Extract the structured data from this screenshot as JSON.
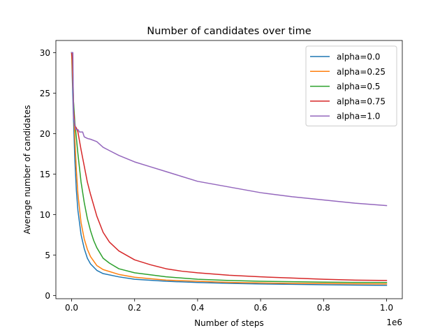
{
  "chart_data": {
    "type": "line",
    "title": "Number of candidates over time",
    "xlabel": "Number of steps",
    "ylabel": "Average number of candidates",
    "x_offset_label": "1e6",
    "xlim": [
      -0.05,
      1.05
    ],
    "ylim": [
      -0.4,
      31.5
    ],
    "x_ticks": [
      0.0,
      0.2,
      0.4,
      0.6,
      0.8,
      1.0
    ],
    "x_tick_labels": [
      "0.0",
      "0.2",
      "0.4",
      "0.6",
      "0.8",
      "1.0"
    ],
    "y_ticks": [
      0,
      5,
      10,
      15,
      20,
      25,
      30
    ],
    "y_tick_labels": [
      "0",
      "5",
      "10",
      "15",
      "20",
      "25",
      "30"
    ],
    "grid": false,
    "legend_position": "top-right",
    "series": [
      {
        "name": "alpha=0.0",
        "color": "#1f77b4",
        "x": [
          0.0,
          0.002,
          0.005,
          0.01,
          0.015,
          0.02,
          0.03,
          0.04,
          0.05,
          0.06,
          0.08,
          0.1,
          0.15,
          0.2,
          0.3,
          0.4,
          0.5,
          0.6,
          0.7,
          0.8,
          0.9,
          1.0
        ],
        "y": [
          30,
          27,
          23,
          17,
          13,
          10.5,
          7.5,
          5.8,
          4.6,
          3.9,
          3.1,
          2.7,
          2.3,
          2.0,
          1.75,
          1.6,
          1.5,
          1.42,
          1.38,
          1.32,
          1.28,
          1.25
        ]
      },
      {
        "name": "alpha=0.25",
        "color": "#ff7f0e",
        "x": [
          0.0,
          0.002,
          0.005,
          0.01,
          0.015,
          0.02,
          0.03,
          0.04,
          0.05,
          0.06,
          0.08,
          0.1,
          0.15,
          0.2,
          0.3,
          0.4,
          0.5,
          0.6,
          0.7,
          0.8,
          0.9,
          1.0
        ],
        "y": [
          30,
          28,
          25,
          19.5,
          15.5,
          12.5,
          9,
          7,
          5.7,
          4.8,
          3.7,
          3.2,
          2.6,
          2.25,
          1.9,
          1.75,
          1.62,
          1.55,
          1.5,
          1.47,
          1.44,
          1.42
        ]
      },
      {
        "name": "alpha=0.5",
        "color": "#2ca02c",
        "x": [
          0.0,
          0.003,
          0.006,
          0.01,
          0.015,
          0.02,
          0.03,
          0.04,
          0.05,
          0.06,
          0.07,
          0.08,
          0.1,
          0.12,
          0.15,
          0.2,
          0.3,
          0.4,
          0.5,
          0.6,
          0.7,
          0.8,
          0.9,
          1.0
        ],
        "y": [
          30,
          29,
          24,
          21.5,
          19.5,
          17.5,
          14,
          11.5,
          9.5,
          8,
          6.8,
          5.9,
          4.6,
          4.0,
          3.3,
          2.8,
          2.3,
          2.0,
          1.85,
          1.75,
          1.7,
          1.65,
          1.62,
          1.6
        ]
      },
      {
        "name": "alpha=0.75",
        "color": "#d62728",
        "x": [
          0.0,
          0.003,
          0.006,
          0.01,
          0.015,
          0.02,
          0.03,
          0.04,
          0.05,
          0.06,
          0.08,
          0.1,
          0.12,
          0.15,
          0.2,
          0.25,
          0.3,
          0.35,
          0.4,
          0.5,
          0.6,
          0.7,
          0.8,
          0.9,
          1.0
        ],
        "y": [
          30,
          29,
          23,
          21,
          20.7,
          20.2,
          18,
          16,
          14,
          12.5,
          9.8,
          7.8,
          6.6,
          5.5,
          4.4,
          3.8,
          3.3,
          3.0,
          2.8,
          2.5,
          2.3,
          2.15,
          2.0,
          1.9,
          1.85
        ]
      },
      {
        "name": "alpha=1.0",
        "color": "#9467bd",
        "x": [
          0.0,
          0.004,
          0.006,
          0.01,
          0.013,
          0.02,
          0.025,
          0.035,
          0.04,
          0.05,
          0.06,
          0.08,
          0.1,
          0.12,
          0.15,
          0.2,
          0.25,
          0.3,
          0.35,
          0.4,
          0.5,
          0.6,
          0.7,
          0.8,
          0.9,
          1.0
        ],
        "y": [
          30,
          30,
          22,
          21.2,
          20.5,
          20.5,
          20.2,
          20.2,
          19.6,
          19.4,
          19.3,
          19.0,
          18.3,
          17.9,
          17.3,
          16.5,
          15.9,
          15.3,
          14.7,
          14.1,
          13.4,
          12.7,
          12.2,
          11.8,
          11.4,
          11.1
        ]
      }
    ]
  }
}
